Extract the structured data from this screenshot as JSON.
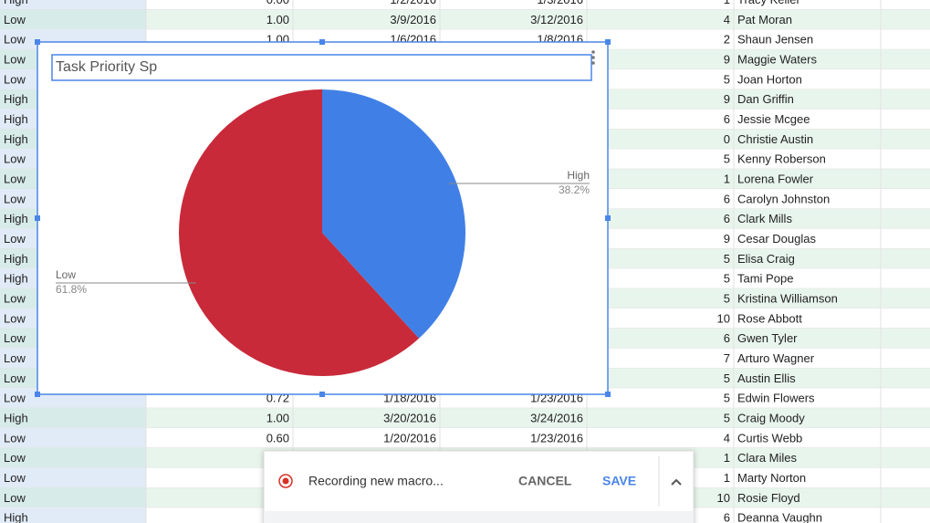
{
  "sheet": {
    "rows": [
      {
        "cells": [
          "High",
          "0.00",
          "1/2/2016",
          "1/3/2016",
          "1",
          "Tracy Keller"
        ]
      },
      {
        "cells": [
          "Low",
          "1.00",
          "3/9/2016",
          "3/12/2016",
          "4",
          "Pat Moran"
        ]
      },
      {
        "cells": [
          "Low",
          "1.00",
          "1/6/2016",
          "1/8/2016",
          "2",
          "Shaun Jensen"
        ]
      },
      {
        "cells": [
          "Low",
          null,
          null,
          null,
          "9",
          "Maggie Waters"
        ]
      },
      {
        "cells": [
          "Low",
          null,
          null,
          null,
          "5",
          "Joan Horton"
        ]
      },
      {
        "cells": [
          "High",
          null,
          null,
          null,
          "9",
          "Dan Griffin"
        ]
      },
      {
        "cells": [
          "High",
          null,
          null,
          null,
          "6",
          "Jessie Mcgee"
        ]
      },
      {
        "cells": [
          "High",
          null,
          null,
          null,
          "0",
          "Christie Austin"
        ]
      },
      {
        "cells": [
          "Low",
          null,
          null,
          null,
          "5",
          "Kenny Roberson"
        ]
      },
      {
        "cells": [
          "Low",
          null,
          null,
          null,
          "1",
          "Lorena Fowler"
        ]
      },
      {
        "cells": [
          "Low",
          null,
          null,
          null,
          "6",
          "Carolyn Johnston"
        ]
      },
      {
        "cells": [
          "High",
          null,
          null,
          null,
          "6",
          "Clark Mills"
        ]
      },
      {
        "cells": [
          "Low",
          null,
          null,
          null,
          "9",
          "Cesar Douglas"
        ]
      },
      {
        "cells": [
          "High",
          null,
          null,
          null,
          "5",
          "Elisa Craig"
        ]
      },
      {
        "cells": [
          "High",
          null,
          null,
          null,
          "5",
          "Tami Pope"
        ]
      },
      {
        "cells": [
          "Low",
          null,
          null,
          null,
          "5",
          "Kristina Williamson"
        ]
      },
      {
        "cells": [
          "Low",
          null,
          null,
          null,
          "10",
          "Rose Abbott"
        ]
      },
      {
        "cells": [
          "Low",
          null,
          null,
          null,
          "6",
          "Gwen Tyler"
        ]
      },
      {
        "cells": [
          "Low",
          null,
          null,
          null,
          "7",
          "Arturo Wagner"
        ]
      },
      {
        "cells": [
          "Low",
          null,
          null,
          null,
          "5",
          "Austin Ellis"
        ]
      },
      {
        "cells": [
          "Low",
          "0.72",
          "1/18/2016",
          "1/23/2016",
          "5",
          "Edwin Flowers"
        ]
      },
      {
        "cells": [
          "High",
          "1.00",
          "3/20/2016",
          "3/24/2016",
          "5",
          "Craig Moody"
        ]
      },
      {
        "cells": [
          "Low",
          "0.60",
          "1/20/2016",
          "1/23/2016",
          "4",
          "Curtis Webb"
        ]
      },
      {
        "cells": [
          "Low",
          null,
          null,
          null,
          "1",
          "Clara Miles"
        ]
      },
      {
        "cells": [
          "Low",
          null,
          null,
          null,
          "1",
          "Marty Norton"
        ]
      },
      {
        "cells": [
          "Low",
          null,
          null,
          null,
          "10",
          "Rosie Floyd"
        ]
      },
      {
        "cells": [
          "High",
          null,
          null,
          null,
          "6",
          "Deanna Vaughn"
        ]
      }
    ]
  },
  "chart": {
    "type": "pie",
    "title": "Task Priority Sp",
    "categories": [
      "High",
      "Low"
    ],
    "values": [
      38.2,
      61.8
    ],
    "value_labels": [
      "38.2%",
      "61.8%"
    ],
    "colors": [
      "#4080e6",
      "#c82a3a"
    ]
  },
  "macro_bar": {
    "status": "Recording new macro...",
    "cancel": "CANCEL",
    "save": "SAVE"
  }
}
